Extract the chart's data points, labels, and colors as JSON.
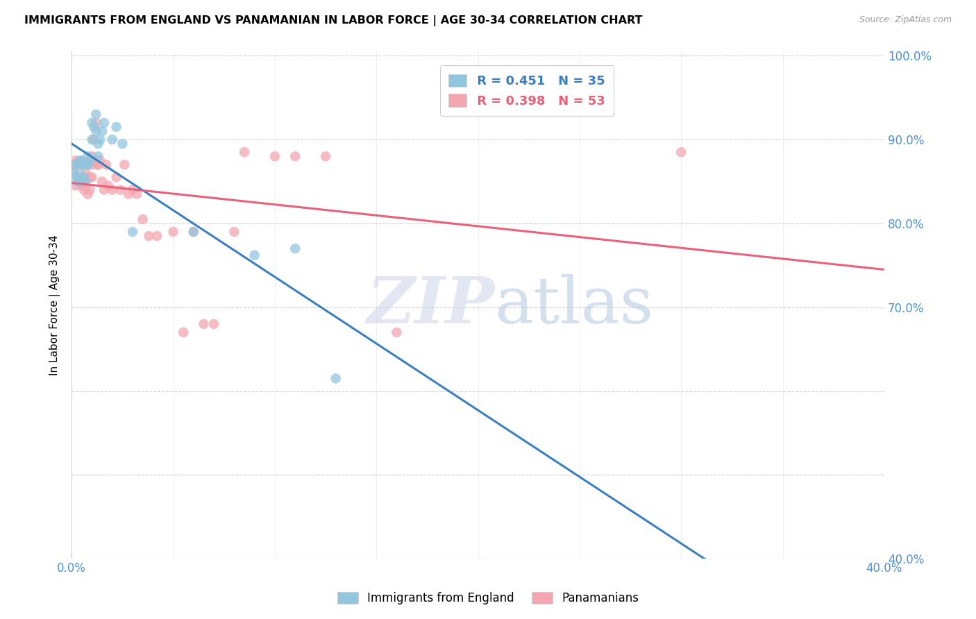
{
  "title": "IMMIGRANTS FROM ENGLAND VS PANAMANIAN IN LABOR FORCE | AGE 30-34 CORRELATION CHART",
  "source": "Source: ZipAtlas.com",
  "ylabel": "In Labor Force | Age 30-34",
  "x_min": 0.0,
  "x_max": 0.4,
  "y_min": 0.4,
  "y_max": 1.005,
  "legend_R_england": "R = 0.451",
  "legend_N_england": "N = 35",
  "legend_R_panama": "R = 0.398",
  "legend_N_panama": "N = 53",
  "england_color": "#92c5de",
  "panama_color": "#f4a6b0",
  "england_line_color": "#3a7fc1",
  "panama_line_color": "#e8607a",
  "legend_text_color_eng": "#3a7fc1",
  "legend_text_color_pan": "#e8607a",
  "watermark_zip": "ZIP",
  "watermark_atlas": "atlas",
  "england_x": [
    0.001,
    0.002,
    0.002,
    0.003,
    0.003,
    0.004,
    0.004,
    0.005,
    0.005,
    0.005,
    0.006,
    0.006,
    0.007,
    0.007,
    0.008,
    0.008,
    0.009,
    0.01,
    0.01,
    0.011,
    0.012,
    0.012,
    0.013,
    0.013,
    0.014,
    0.015,
    0.016,
    0.02,
    0.022,
    0.025,
    0.03,
    0.06,
    0.09,
    0.11,
    0.13
  ],
  "england_y": [
    0.86,
    0.855,
    0.87,
    0.85,
    0.87,
    0.858,
    0.875,
    0.85,
    0.87,
    0.875,
    0.855,
    0.87,
    0.85,
    0.87,
    0.87,
    0.88,
    0.875,
    0.9,
    0.92,
    0.915,
    0.93,
    0.91,
    0.88,
    0.895,
    0.9,
    0.91,
    0.92,
    0.9,
    0.915,
    0.895,
    0.79,
    0.79,
    0.762,
    0.77,
    0.615
  ],
  "panama_x": [
    0.001,
    0.001,
    0.002,
    0.002,
    0.003,
    0.003,
    0.004,
    0.004,
    0.005,
    0.005,
    0.006,
    0.006,
    0.006,
    0.007,
    0.007,
    0.008,
    0.008,
    0.009,
    0.009,
    0.01,
    0.01,
    0.01,
    0.011,
    0.012,
    0.013,
    0.013,
    0.014,
    0.015,
    0.016,
    0.017,
    0.018,
    0.02,
    0.022,
    0.024,
    0.026,
    0.028,
    0.03,
    0.032,
    0.035,
    0.038,
    0.042,
    0.05,
    0.055,
    0.06,
    0.065,
    0.07,
    0.08,
    0.085,
    0.1,
    0.11,
    0.125,
    0.16,
    0.3
  ],
  "panama_y": [
    0.86,
    0.87,
    0.845,
    0.875,
    0.85,
    0.87,
    0.855,
    0.87,
    0.845,
    0.87,
    0.84,
    0.855,
    0.87,
    0.845,
    0.86,
    0.835,
    0.87,
    0.84,
    0.855,
    0.855,
    0.87,
    0.88,
    0.9,
    0.92,
    0.87,
    0.87,
    0.875,
    0.85,
    0.84,
    0.87,
    0.845,
    0.84,
    0.855,
    0.84,
    0.87,
    0.835,
    0.84,
    0.835,
    0.805,
    0.785,
    0.785,
    0.79,
    0.67,
    0.79,
    0.68,
    0.68,
    0.79,
    0.885,
    0.88,
    0.88,
    0.88,
    0.67,
    0.885
  ]
}
